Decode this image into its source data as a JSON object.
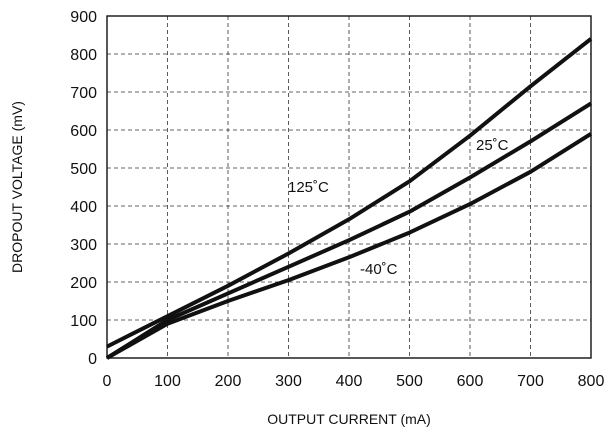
{
  "chart_data": {
    "type": "line",
    "title": "",
    "xlabel": "OUTPUT CURRENT (mA)",
    "ylabel": "DROPOUT VOLTAGE (mV)",
    "xlim": [
      0,
      800
    ],
    "ylim": [
      0,
      900
    ],
    "xticks": [
      0,
      100,
      200,
      300,
      400,
      500,
      600,
      700,
      800
    ],
    "yticks": [
      0,
      100,
      200,
      300,
      400,
      500,
      600,
      700,
      800,
      900
    ],
    "grid": true,
    "legend": "none",
    "series": [
      {
        "name": "125°C",
        "x": [
          0,
          100,
          200,
          300,
          400,
          500,
          600,
          700,
          800
        ],
        "y": [
          30,
          110,
          190,
          275,
          365,
          465,
          585,
          715,
          840
        ]
      },
      {
        "name": "25°C",
        "x": [
          0,
          100,
          200,
          300,
          400,
          500,
          600,
          700,
          800
        ],
        "y": [
          0,
          100,
          170,
          240,
          310,
          385,
          475,
          570,
          670
        ]
      },
      {
        "name": "-40°C",
        "x": [
          0,
          100,
          200,
          300,
          400,
          500,
          600,
          700,
          800
        ],
        "y": [
          0,
          90,
          150,
          205,
          265,
          330,
          405,
          490,
          590
        ]
      }
    ],
    "annotations": [
      {
        "text": "125˚C",
        "series": 0
      },
      {
        "text": "25˚C",
        "series": 1
      },
      {
        "text": "-40˚C",
        "series": 2
      }
    ]
  }
}
